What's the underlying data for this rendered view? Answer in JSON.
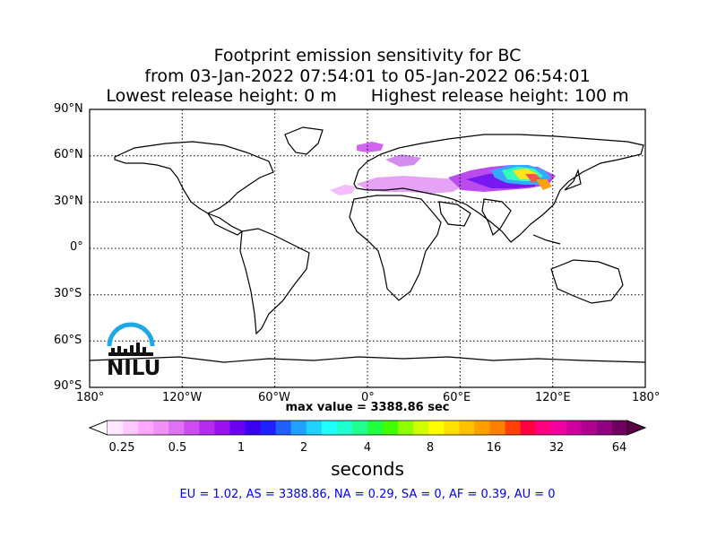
{
  "title": {
    "line1": "Footprint emission sensitivity for BC",
    "line2": "from 03-Jan-2022 07:54:01 to 05-Jan-2022 06:54:01",
    "line3_left": "Lowest release height: 0 m",
    "line3_right": "Highest release height: 100 m"
  },
  "map": {
    "projection": "cylindrical",
    "lat_ticks": [
      "90°N",
      "60°N",
      "30°N",
      "0°",
      "30°S",
      "60°S",
      "90°S"
    ],
    "lon_ticks": [
      "180°",
      "120°W",
      "60°W",
      "0°",
      "60°E",
      "120°E",
      "180°"
    ],
    "grid": "dotted",
    "logo_text": "NILU"
  },
  "max_value_text": "max value = 3388.86 sec",
  "colorbar": {
    "tick_labels": [
      "0.25",
      "0.5",
      "1",
      "2",
      "4",
      "8",
      "16",
      "32",
      "64"
    ],
    "label": "seconds",
    "colors": [
      "#ffe8ff",
      "#ffc8ff",
      "#ffa8ff",
      "#f090f8",
      "#e070f4",
      "#cc4cf0",
      "#b52cee",
      "#9a10ee",
      "#6a00f0",
      "#3a00f0",
      "#2020ff",
      "#2060ff",
      "#20a0ff",
      "#20d0ff",
      "#20ffff",
      "#20ffd0",
      "#20ff90",
      "#20ff40",
      "#40ff00",
      "#90ff00",
      "#d0ff00",
      "#ffff00",
      "#ffe000",
      "#ffc000",
      "#ffa000",
      "#ff8000",
      "#ff4000",
      "#ff0040",
      "#ff0080",
      "#f000a0",
      "#d000a0",
      "#b00090",
      "#900080",
      "#700060"
    ]
  },
  "summary": "EU = 1.02,  AS = 3388.86,  NA = 0.29,  SA = 0,  AF = 0.39,  AU = 0"
}
